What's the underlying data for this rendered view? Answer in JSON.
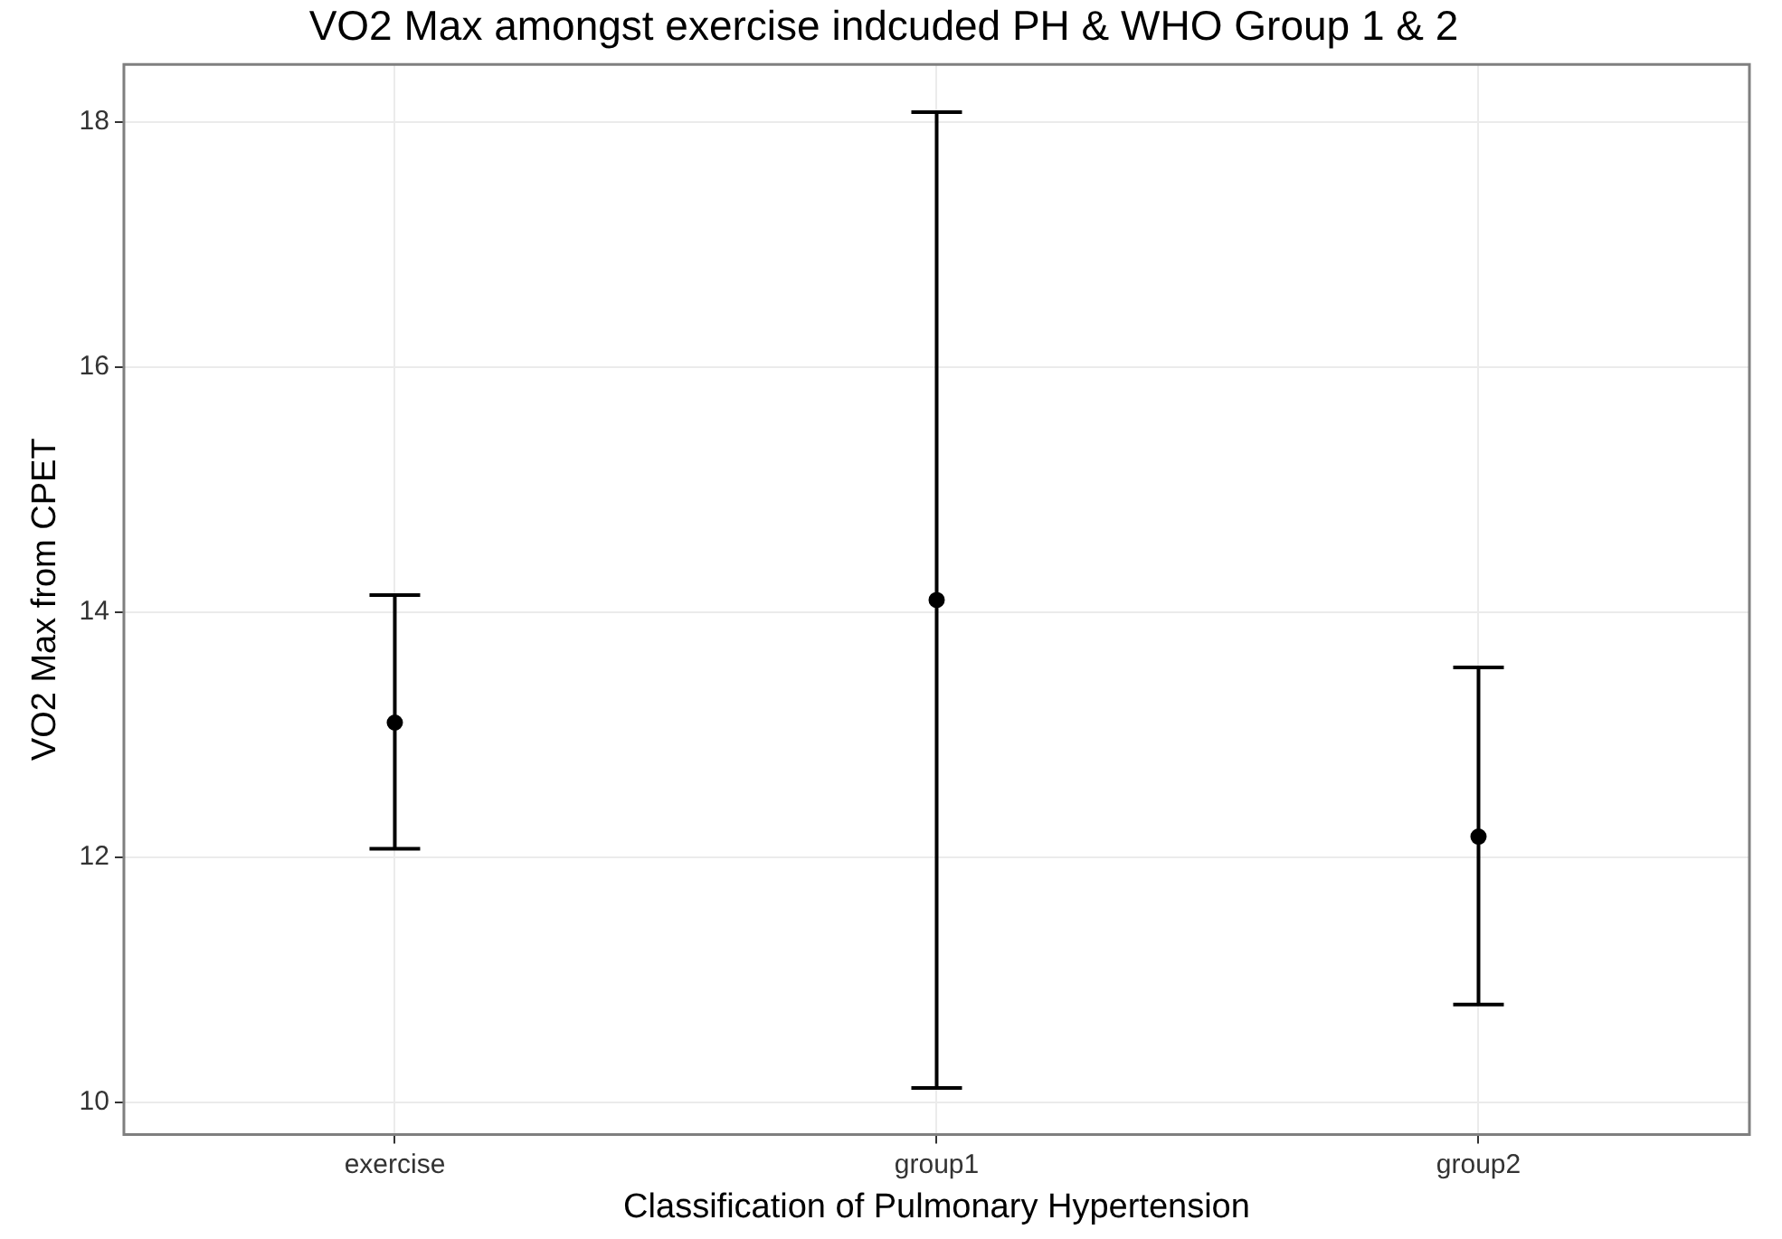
{
  "chart_data": {
    "type": "scatter",
    "title": "VO2 Max amongst exercise indcuded PH & WHO Group 1 & 2",
    "xlabel": "Classification of Pulmonary Hypertension",
    "ylabel": "VO2 Max from CPET",
    "categories": [
      "exercise",
      "group1",
      "group2"
    ],
    "series": [
      {
        "color": "#000000",
        "values": [
          13.1,
          14.1,
          12.17
        ],
        "errors": [
          [
            12.07,
            14.14
          ],
          [
            10.12,
            18.08
          ],
          [
            10.8,
            13.55
          ]
        ]
      }
    ],
    "ylim": [
      9.74,
      18.47
    ],
    "yticks": [
      10,
      12,
      14,
      16,
      18
    ],
    "grid": true,
    "legend": false,
    "marker": "circle"
  }
}
